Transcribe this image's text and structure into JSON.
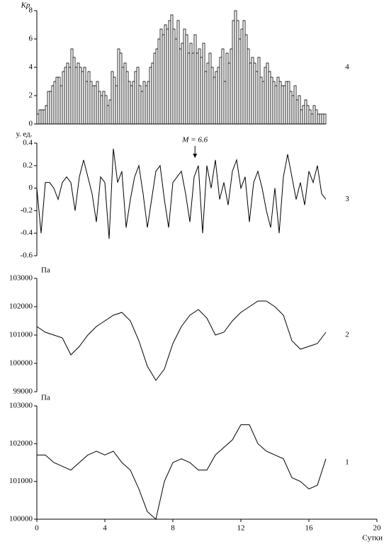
{
  "chart_data": [
    {
      "type": "bar",
      "ylabel": "Kp",
      "panel_label": "4",
      "color": "#000000",
      "bar_width": 0.125,
      "xlim": [
        0,
        20
      ],
      "ylim": [
        0,
        8
      ],
      "yticks": [
        0,
        2,
        4,
        6,
        8
      ],
      "x": [
        0,
        0.125,
        0.25,
        0.375,
        0.5,
        0.625,
        0.75,
        0.875,
        1,
        1.125,
        1.25,
        1.375,
        1.5,
        1.625,
        1.75,
        1.875,
        2,
        2.125,
        2.25,
        2.375,
        2.5,
        2.625,
        2.75,
        2.875,
        3,
        3.125,
        3.25,
        3.375,
        3.5,
        3.625,
        3.75,
        3.875,
        4,
        4.125,
        4.25,
        4.375,
        4.5,
        4.625,
        4.75,
        4.875,
        5,
        5.125,
        5.25,
        5.375,
        5.5,
        5.625,
        5.75,
        5.875,
        6,
        6.125,
        6.25,
        6.375,
        6.5,
        6.625,
        6.75,
        6.875,
        7,
        7.125,
        7.25,
        7.375,
        7.5,
        7.625,
        7.75,
        7.875,
        8,
        8.125,
        8.25,
        8.375,
        8.5,
        8.625,
        8.75,
        8.875,
        9,
        9.125,
        9.25,
        9.375,
        9.5,
        9.625,
        9.75,
        9.875,
        10,
        10.125,
        10.25,
        10.375,
        10.5,
        10.625,
        10.75,
        10.875,
        11,
        11.125,
        11.25,
        11.375,
        11.5,
        11.625,
        11.75,
        11.875,
        12,
        12.125,
        12.25,
        12.375,
        12.5,
        12.625,
        12.75,
        12.875,
        13,
        13.125,
        13.25,
        13.375,
        13.5,
        13.625,
        13.75,
        13.875,
        14,
        14.125,
        14.25,
        14.375,
        14.5,
        14.625,
        14.75,
        14.875,
        15,
        15.125,
        15.25,
        15.375,
        15.5,
        15.625,
        15.75,
        15.875,
        16,
        16.125,
        16.25,
        16.375,
        16.5,
        16.625,
        16.75,
        16.875
      ],
      "values": [
        0.7,
        1,
        1,
        1,
        1.3,
        2.3,
        2.3,
        2.7,
        3,
        3.3,
        3.3,
        2.7,
        3.7,
        4,
        4.3,
        4,
        5.3,
        4.7,
        4,
        4.3,
        4,
        3.7,
        4,
        3,
        3.7,
        3,
        2.7,
        2.7,
        3,
        2.3,
        2,
        2.3,
        2,
        1.3,
        1.7,
        3.7,
        3.3,
        2.7,
        5.3,
        5,
        4,
        4.3,
        3.7,
        3,
        2.7,
        3,
        3.7,
        4,
        2.7,
        2.3,
        3,
        2.7,
        3,
        4,
        4.3,
        5,
        5.3,
        6,
        6.7,
        6.3,
        7,
        6.7,
        7.3,
        7.7,
        6.7,
        6,
        7.3,
        5.3,
        5.7,
        6.7,
        6.3,
        5,
        5.7,
        5,
        6.3,
        5,
        5.3,
        4.7,
        5.7,
        3.7,
        4.3,
        5,
        4,
        3.3,
        3.7,
        4,
        4.7,
        5.3,
        3,
        5,
        4.3,
        5.3,
        7.3,
        8,
        7.3,
        6,
        6.7,
        7.3,
        6.3,
        5.3,
        4.3,
        4.7,
        4.3,
        3.7,
        4.7,
        3.3,
        3,
        4,
        4.3,
        3.7,
        3.3,
        3,
        2.7,
        3.3,
        3,
        2.7,
        2.7,
        3,
        3,
        2.3,
        2,
        2.7,
        1.7,
        2,
        1,
        1.3,
        1.7,
        1.3,
        1,
        0.7,
        1.3,
        1,
        0.7,
        0.7,
        0.7,
        0.7
      ]
    },
    {
      "type": "line",
      "ylabel": "у. ед.",
      "panel_label": "3",
      "color": "#000000",
      "annotation": {
        "text": "M = 6.6",
        "x": 9.3
      },
      "xlim": [
        0,
        20
      ],
      "ylim": [
        -0.6,
        0.4
      ],
      "yticks": [
        -0.6,
        -0.4,
        -0.2,
        0,
        0.2,
        0.4
      ],
      "x": [
        0,
        0.25,
        0.5,
        0.75,
        1,
        1.25,
        1.5,
        1.75,
        2,
        2.25,
        2.5,
        2.75,
        3,
        3.25,
        3.5,
        3.75,
        4,
        4.25,
        4.5,
        4.75,
        5,
        5.25,
        5.5,
        5.75,
        6,
        6.25,
        6.5,
        6.75,
        7,
        7.25,
        7.5,
        7.75,
        8,
        8.25,
        8.5,
        8.75,
        9,
        9.25,
        9.5,
        9.75,
        10,
        10.25,
        10.5,
        10.75,
        11,
        11.25,
        11.5,
        11.75,
        12,
        12.25,
        12.5,
        12.75,
        13,
        13.25,
        13.5,
        13.75,
        14,
        14.25,
        14.5,
        14.75,
        15,
        15.25,
        15.5,
        15.75,
        16,
        16.25,
        16.5,
        16.75,
        17
      ],
      "values": [
        0,
        -0.4,
        0.05,
        0.05,
        0,
        -0.1,
        0.05,
        0.1,
        0.05,
        -0.2,
        0.1,
        0.25,
        0.1,
        -0.05,
        -0.3,
        0.1,
        0.05,
        -0.45,
        0.35,
        0.05,
        0.15,
        -0.35,
        -0.1,
        0.1,
        0.2,
        -0.05,
        -0.35,
        -0.1,
        0.15,
        0.2,
        -0.1,
        -0.35,
        0.05,
        0.1,
        0.15,
        -0.05,
        -0.3,
        0.1,
        0.2,
        -0.4,
        0.2,
        0,
        0.25,
        -0.1,
        0.05,
        -0.15,
        0.15,
        0.25,
        0,
        0.1,
        -0.3,
        0.05,
        0.15,
        0,
        -0.2,
        -0.35,
        0,
        -0.4,
        0.1,
        0.3,
        0.1,
        -0.1,
        0.05,
        -0.15,
        0.15,
        0.05,
        0.2,
        -0.05,
        -0.1
      ]
    },
    {
      "type": "line",
      "ylabel": "Па",
      "panel_label": "2",
      "color": "#000000",
      "xlim": [
        0,
        20
      ],
      "ylim": [
        99000,
        103000
      ],
      "yticks": [
        99000,
        100000,
        101000,
        102000,
        103000
      ],
      "x": [
        0,
        0.5,
        1,
        1.5,
        2,
        2.5,
        3,
        3.5,
        4,
        4.5,
        5,
        5.5,
        6,
        6.5,
        7,
        7.5,
        8,
        8.5,
        9,
        9.5,
        10,
        10.5,
        11,
        11.5,
        12,
        12.5,
        13,
        13.5,
        14,
        14.5,
        15,
        15.5,
        16,
        16.5,
        17
      ],
      "values": [
        101300,
        101100,
        101000,
        100900,
        100300,
        100600,
        101000,
        101300,
        101500,
        101700,
        101800,
        101500,
        100800,
        99900,
        99400,
        99800,
        100700,
        101300,
        101700,
        101900,
        101600,
        101000,
        101100,
        101500,
        101800,
        102000,
        102200,
        102200,
        102000,
        101700,
        100800,
        100500,
        100600,
        100700,
        101100
      ]
    },
    {
      "type": "line",
      "ylabel": "Па",
      "panel_label": "1",
      "color": "#000000",
      "xlabel": "Сутки",
      "xlim": [
        0,
        20
      ],
      "xticks": [
        0,
        4,
        8,
        12,
        16,
        20
      ],
      "ylim": [
        100000,
        103000
      ],
      "yticks": [
        100000,
        101000,
        102000,
        103000
      ],
      "x": [
        0,
        0.5,
        1,
        1.5,
        2,
        2.5,
        3,
        3.5,
        4,
        4.5,
        5,
        5.5,
        6,
        6.5,
        7,
        7.5,
        8,
        8.5,
        9,
        9.5,
        10,
        10.5,
        11,
        11.5,
        12,
        12.5,
        13,
        13.5,
        14,
        14.5,
        15,
        15.5,
        16,
        16.5,
        17
      ],
      "values": [
        101700,
        101700,
        101500,
        101400,
        101300,
        101500,
        101700,
        101800,
        101700,
        101800,
        101500,
        101300,
        100800,
        100200,
        100000,
        101000,
        101500,
        101600,
        101500,
        101300,
        101300,
        101700,
        101900,
        102100,
        102500,
        102500,
        102000,
        101800,
        101700,
        101600,
        101100,
        101000,
        100800,
        100900,
        101600
      ]
    }
  ]
}
